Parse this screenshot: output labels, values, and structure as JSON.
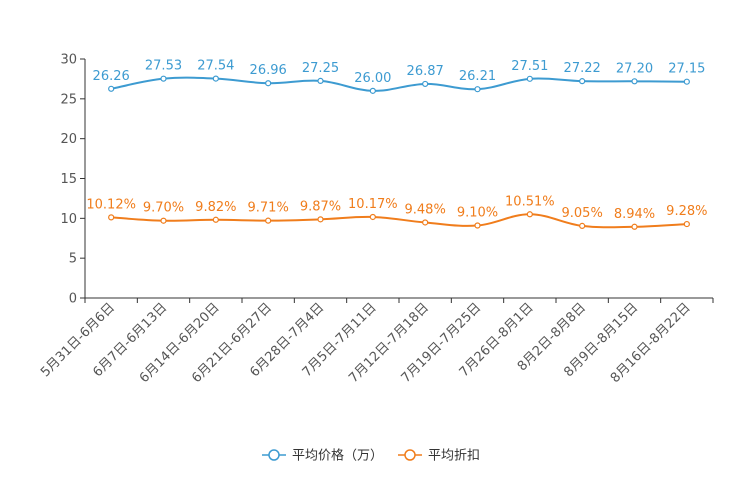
{
  "chart_data": {
    "type": "line",
    "title": "",
    "xlabel": "",
    "ylabel": "",
    "ylim": [
      0,
      30
    ],
    "yticks": [
      0,
      5,
      10,
      15,
      20,
      25,
      30
    ],
    "ytick_labels": [
      "0",
      "5",
      "10",
      "15",
      "20",
      "25",
      "30"
    ],
    "grid": false,
    "legend_position": "bottom-center",
    "categories": [
      "5月31日-6月6日",
      "6月7日-6月13日",
      "6月14日-6月20日",
      "6月21日-6月27日",
      "6月28日-7月4日",
      "7月5日-7月11日",
      "7月12日-7月18日",
      "7月19日-7月25日",
      "7月26日-8月1日",
      "8月2日-8月8日",
      "8月9日-8月15日",
      "8月16日-8月22日"
    ],
    "series": [
      {
        "name": "平均价格（万）",
        "color": "#3d9bd1",
        "values": [
          26.26,
          27.53,
          27.54,
          26.96,
          27.25,
          26.0,
          26.87,
          26.21,
          27.51,
          27.22,
          27.2,
          27.15
        ],
        "labels": [
          "26.26",
          "27.53",
          "27.54",
          "26.96",
          "27.25",
          "26.00",
          "26.87",
          "26.21",
          "27.51",
          "27.22",
          "27.20",
          "27.15"
        ]
      },
      {
        "name": "平均折扣",
        "color": "#f07d1c",
        "values": [
          10.12,
          9.7,
          9.82,
          9.71,
          9.87,
          10.17,
          9.48,
          9.1,
          10.51,
          9.05,
          8.94,
          9.28
        ],
        "labels": [
          "10.12%",
          "9.70%",
          "9.82%",
          "9.71%",
          "9.87%",
          "10.17%",
          "9.48%",
          "9.10%",
          "10.51%",
          "9.05%",
          "8.94%",
          "9.28%"
        ]
      }
    ]
  }
}
